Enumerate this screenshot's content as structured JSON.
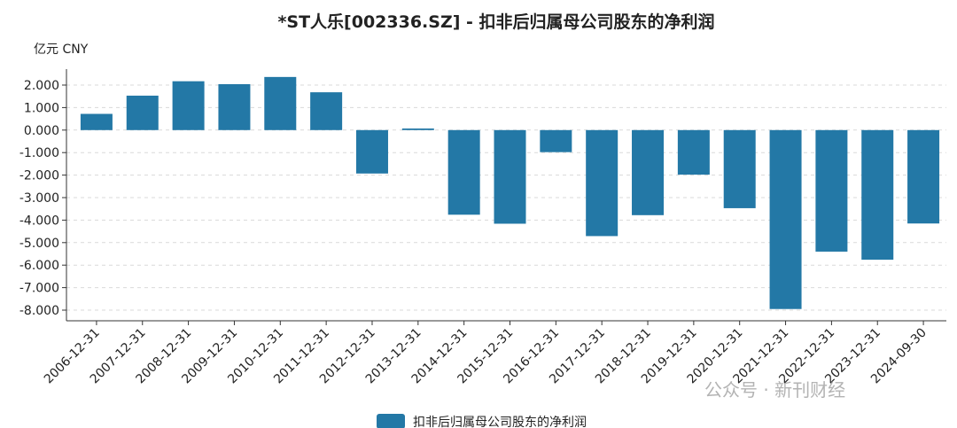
{
  "watermark": "公众号 · 新刊财经",
  "chart_data": {
    "type": "bar",
    "title": "*ST人乐[002336.SZ] - 扣非后归属母公司股东的净利润",
    "unit_label": "亿元 CNY",
    "legend": "top? no",
    "legend_position": "bottom-center",
    "grid": true,
    "ylim": [
      -8.5,
      2.6
    ],
    "yticks": [
      "2.000",
      "1.000",
      "0.000",
      "-1.000",
      "-2.000",
      "-3.000",
      "-4.000",
      "-5.000",
      "-6.000",
      "-7.000",
      "-8.000"
    ],
    "ytick_values": [
      2,
      1,
      0,
      -1,
      -2,
      -3,
      -4,
      -5,
      -6,
      -7,
      -8
    ],
    "categories": [
      "2006-12-31",
      "2007-12-31",
      "2008-12-31",
      "2009-12-31",
      "2010-12-31",
      "2011-12-31",
      "2012-12-31",
      "2013-12-31",
      "2014-12-31",
      "2015-12-31",
      "2016-12-31",
      "2017-12-31",
      "2018-12-31",
      "2019-12-31",
      "2020-12-31",
      "2021-12-31",
      "2022-12-31",
      "2023-12-31",
      "2024-09-30"
    ],
    "series": [
      {
        "name": "扣非后归属母公司股东的净利润",
        "color": "#2378a6",
        "values": [
          0.72,
          1.53,
          2.17,
          2.04,
          2.36,
          1.68,
          -1.93,
          0.07,
          -3.76,
          -4.16,
          -0.98,
          -4.71,
          -3.78,
          -1.98,
          -3.47,
          -7.95,
          -5.4,
          -5.76,
          -4.15
        ]
      }
    ]
  }
}
